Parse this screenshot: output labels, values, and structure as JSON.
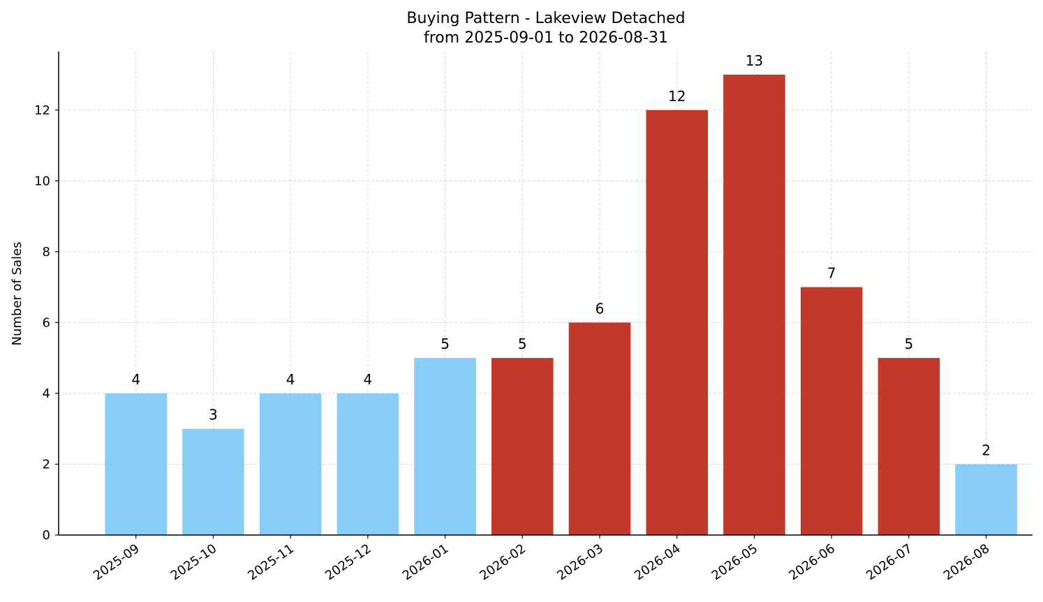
{
  "chart_data": {
    "type": "bar",
    "title": "Buying Pattern - Lakeview Detached",
    "subtitle": "from 2025-09-01 to 2026-08-31",
    "xlabel": "",
    "ylabel": "Number of Sales",
    "ylim": [
      0,
      13.65
    ],
    "yticks": [
      0,
      2,
      4,
      6,
      8,
      10,
      12
    ],
    "grid": true,
    "categories": [
      "2025-09",
      "2025-10",
      "2025-11",
      "2025-12",
      "2026-01",
      "2026-02",
      "2026-03",
      "2026-04",
      "2026-05",
      "2026-06",
      "2026-07",
      "2026-08"
    ],
    "values": [
      4,
      3,
      4,
      4,
      5,
      5,
      6,
      12,
      13,
      7,
      5,
      2
    ],
    "season": [
      "low",
      "low",
      "low",
      "low",
      "low",
      "high",
      "high",
      "high",
      "high",
      "high",
      "high",
      "low"
    ],
    "colors": {
      "low": "#87cdf7",
      "high": "#c0392b"
    }
  }
}
